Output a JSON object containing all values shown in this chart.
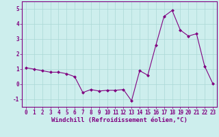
{
  "x": [
    0,
    1,
    2,
    3,
    4,
    5,
    6,
    7,
    8,
    9,
    10,
    11,
    12,
    13,
    14,
    15,
    16,
    17,
    18,
    19,
    20,
    21,
    22,
    23
  ],
  "y": [
    1.1,
    1.0,
    0.9,
    0.8,
    0.8,
    0.7,
    0.5,
    -0.55,
    -0.35,
    -0.45,
    -0.4,
    -0.4,
    -0.35,
    -1.1,
    0.9,
    0.6,
    2.6,
    4.5,
    4.9,
    3.6,
    3.2,
    3.35,
    1.2,
    0.05
  ],
  "line_color": "#800080",
  "marker": "D",
  "marker_size": 2,
  "linewidth": 0.8,
  "xlabel": "Windchill (Refroidissement éolien,°C)",
  "xlabel_fontsize": 6.5,
  "ylim": [
    -1.5,
    5.5
  ],
  "xlim": [
    -0.5,
    23.5
  ],
  "yticks": [
    -1,
    0,
    1,
    2,
    3,
    4,
    5
  ],
  "xticks": [
    0,
    1,
    2,
    3,
    4,
    5,
    6,
    7,
    8,
    9,
    10,
    11,
    12,
    13,
    14,
    15,
    16,
    17,
    18,
    19,
    20,
    21,
    22,
    23
  ],
  "background_color": "#cdeeed",
  "grid_color": "#aad8d5",
  "tick_fontsize": 5.5,
  "spine_color": "#800080"
}
